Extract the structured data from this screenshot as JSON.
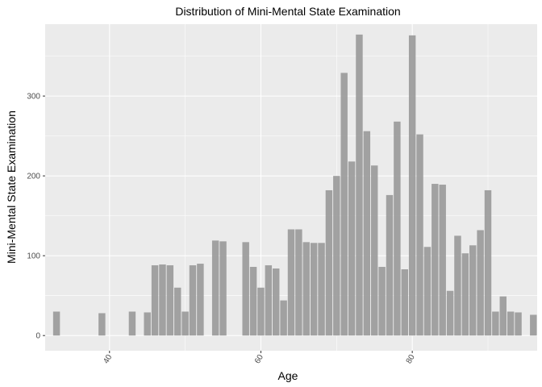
{
  "colors": {
    "panel": "#ebebeb",
    "grid_major": "#ffffff",
    "bar": "#999999",
    "tick": "#333333",
    "tick_label": "#4d4d4d"
  },
  "chart_data": {
    "type": "bar",
    "title": "Distribution of Mini-Mental State Examination",
    "xlabel": "Age",
    "ylabel": "Mini-Mental State Examination",
    "xlim": [
      31.5,
      96.5
    ],
    "ylim": [
      -19,
      390
    ],
    "x_ticks": [
      40,
      60,
      80
    ],
    "y_ticks": [
      0,
      100,
      200,
      300
    ],
    "x_tick_label_angle": -60,
    "grid": true,
    "legend": "none",
    "x": [
      33,
      39,
      43,
      45,
      46,
      47,
      48,
      49,
      50,
      51,
      52,
      54,
      55,
      58,
      59,
      60,
      61,
      62,
      63,
      64,
      65,
      66,
      67,
      68,
      69,
      70,
      71,
      72,
      73,
      74,
      75,
      76,
      77,
      78,
      79,
      80,
      81,
      82,
      83,
      84,
      85,
      86,
      87,
      88,
      89,
      90,
      91,
      92,
      93,
      94,
      96
    ],
    "values": [
      30,
      28,
      30,
      29,
      88,
      89,
      88,
      60,
      30,
      88,
      90,
      119,
      118,
      117,
      86,
      60,
      88,
      84,
      44,
      133,
      133,
      117,
      116,
      116,
      182,
      200,
      329,
      218,
      377,
      256,
      213,
      86,
      176,
      268,
      83,
      376,
      252,
      111,
      190,
      189,
      56,
      125,
      103,
      113,
      132,
      182,
      30,
      49,
      30,
      29,
      26
    ]
  }
}
